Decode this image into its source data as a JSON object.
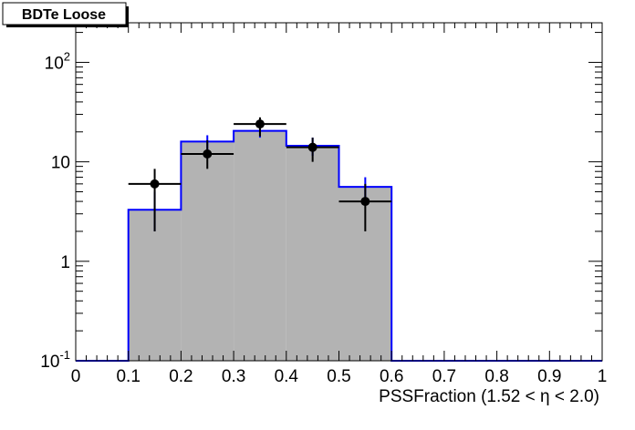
{
  "chart_data": {
    "type": "histogram",
    "title": "BDTe Loose",
    "xlabel": "PSSFraction (1.52 <  η < 2.0)",
    "ylabel": "",
    "xlim": [
      0,
      1
    ],
    "ylim": [
      0.1,
      250
    ],
    "yscale": "log",
    "grid": false,
    "x_ticks": [
      {
        "value": 0,
        "label": "0"
      },
      {
        "value": 0.1,
        "label": "0.1"
      },
      {
        "value": 0.2,
        "label": "0.2"
      },
      {
        "value": 0.3,
        "label": "0.3"
      },
      {
        "value": 0.4,
        "label": "0.4"
      },
      {
        "value": 0.5,
        "label": "0.5"
      },
      {
        "value": 0.6,
        "label": "0.6"
      },
      {
        "value": 0.7,
        "label": "0.7"
      },
      {
        "value": 0.8,
        "label": "0.8"
      },
      {
        "value": 0.9,
        "label": "0.9"
      },
      {
        "value": 1,
        "label": "1"
      }
    ],
    "y_ticks": [
      {
        "value": 0.1,
        "base": "10",
        "exp": "-1"
      },
      {
        "value": 1,
        "base": "1",
        "exp": ""
      },
      {
        "value": 10,
        "base": "10",
        "exp": ""
      },
      {
        "value": 100,
        "base": "10",
        "exp": "2"
      }
    ],
    "histogram": {
      "fill_color": "#b3b3b3",
      "line_color": "#0000ff",
      "bin_edges": [
        0,
        0.1,
        0.2,
        0.3,
        0.4,
        0.5,
        0.6,
        0.7,
        0.8,
        0.9,
        1.0
      ],
      "values": [
        0,
        3.3,
        16,
        20.5,
        14.5,
        5.6,
        0,
        0,
        0,
        0
      ],
      "errors": [
        {
          "x": 0.15,
          "low": 2.0,
          "high": 5.0
        },
        {
          "x": 0.25,
          "low": 11.5,
          "high": 18.5
        },
        {
          "x": 0.35,
          "low": 17.5,
          "high": 24.0
        },
        {
          "x": 0.45,
          "low": 11.5,
          "high": 17.5
        },
        {
          "x": 0.55,
          "low": 4.0,
          "high": 7.0
        }
      ]
    },
    "points": {
      "color": "#000000",
      "data": [
        {
          "x": 0.15,
          "y": 6,
          "x_err": 0.05,
          "y_low": 2,
          "y_high": 8.5
        },
        {
          "x": 0.25,
          "y": 12,
          "x_err": 0.05,
          "y_low": 8.5,
          "y_high": 16.5
        },
        {
          "x": 0.35,
          "y": 24,
          "x_err": 0.05,
          "y_low": 18,
          "y_high": 28
        },
        {
          "x": 0.45,
          "y": 14,
          "x_err": 0.05,
          "y_low": 10,
          "y_high": 17.5
        },
        {
          "x": 0.55,
          "y": 4,
          "x_err": 0.05,
          "y_low": 2,
          "y_high": 6
        }
      ]
    }
  }
}
